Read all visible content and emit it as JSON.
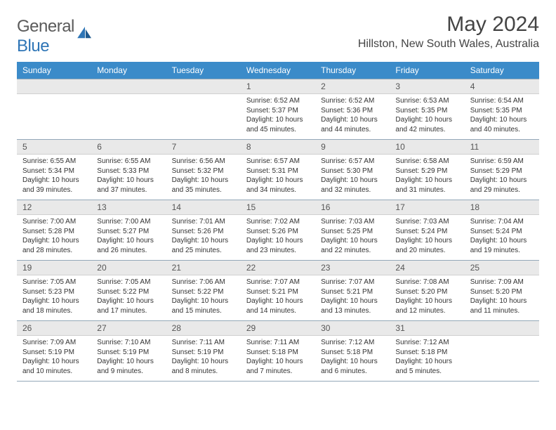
{
  "logo": {
    "text1": "General",
    "text2": "Blue"
  },
  "title": "May 2024",
  "location": "Hillston, New South Wales, Australia",
  "colors": {
    "header_bg": "#3b8bc9",
    "header_text": "#ffffff",
    "daynum_bg": "#e9e9e9",
    "border": "#94a8b8",
    "logo_gray": "#5a5a5a",
    "logo_blue": "#2e75b6"
  },
  "typography": {
    "title_fontsize": 30,
    "location_fontsize": 16,
    "header_fontsize": 12,
    "daynum_fontsize": 12,
    "body_fontsize": 10
  },
  "day_headers": [
    "Sunday",
    "Monday",
    "Tuesday",
    "Wednesday",
    "Thursday",
    "Friday",
    "Saturday"
  ],
  "weeks": [
    [
      null,
      null,
      null,
      {
        "n": "1",
        "sr": "6:52 AM",
        "ss": "5:37 PM",
        "dl": "10 hours and 45 minutes."
      },
      {
        "n": "2",
        "sr": "6:52 AM",
        "ss": "5:36 PM",
        "dl": "10 hours and 44 minutes."
      },
      {
        "n": "3",
        "sr": "6:53 AM",
        "ss": "5:35 PM",
        "dl": "10 hours and 42 minutes."
      },
      {
        "n": "4",
        "sr": "6:54 AM",
        "ss": "5:35 PM",
        "dl": "10 hours and 40 minutes."
      }
    ],
    [
      {
        "n": "5",
        "sr": "6:55 AM",
        "ss": "5:34 PM",
        "dl": "10 hours and 39 minutes."
      },
      {
        "n": "6",
        "sr": "6:55 AM",
        "ss": "5:33 PM",
        "dl": "10 hours and 37 minutes."
      },
      {
        "n": "7",
        "sr": "6:56 AM",
        "ss": "5:32 PM",
        "dl": "10 hours and 35 minutes."
      },
      {
        "n": "8",
        "sr": "6:57 AM",
        "ss": "5:31 PM",
        "dl": "10 hours and 34 minutes."
      },
      {
        "n": "9",
        "sr": "6:57 AM",
        "ss": "5:30 PM",
        "dl": "10 hours and 32 minutes."
      },
      {
        "n": "10",
        "sr": "6:58 AM",
        "ss": "5:29 PM",
        "dl": "10 hours and 31 minutes."
      },
      {
        "n": "11",
        "sr": "6:59 AM",
        "ss": "5:29 PM",
        "dl": "10 hours and 29 minutes."
      }
    ],
    [
      {
        "n": "12",
        "sr": "7:00 AM",
        "ss": "5:28 PM",
        "dl": "10 hours and 28 minutes."
      },
      {
        "n": "13",
        "sr": "7:00 AM",
        "ss": "5:27 PM",
        "dl": "10 hours and 26 minutes."
      },
      {
        "n": "14",
        "sr": "7:01 AM",
        "ss": "5:26 PM",
        "dl": "10 hours and 25 minutes."
      },
      {
        "n": "15",
        "sr": "7:02 AM",
        "ss": "5:26 PM",
        "dl": "10 hours and 23 minutes."
      },
      {
        "n": "16",
        "sr": "7:03 AM",
        "ss": "5:25 PM",
        "dl": "10 hours and 22 minutes."
      },
      {
        "n": "17",
        "sr": "7:03 AM",
        "ss": "5:24 PM",
        "dl": "10 hours and 20 minutes."
      },
      {
        "n": "18",
        "sr": "7:04 AM",
        "ss": "5:24 PM",
        "dl": "10 hours and 19 minutes."
      }
    ],
    [
      {
        "n": "19",
        "sr": "7:05 AM",
        "ss": "5:23 PM",
        "dl": "10 hours and 18 minutes."
      },
      {
        "n": "20",
        "sr": "7:05 AM",
        "ss": "5:22 PM",
        "dl": "10 hours and 17 minutes."
      },
      {
        "n": "21",
        "sr": "7:06 AM",
        "ss": "5:22 PM",
        "dl": "10 hours and 15 minutes."
      },
      {
        "n": "22",
        "sr": "7:07 AM",
        "ss": "5:21 PM",
        "dl": "10 hours and 14 minutes."
      },
      {
        "n": "23",
        "sr": "7:07 AM",
        "ss": "5:21 PM",
        "dl": "10 hours and 13 minutes."
      },
      {
        "n": "24",
        "sr": "7:08 AM",
        "ss": "5:20 PM",
        "dl": "10 hours and 12 minutes."
      },
      {
        "n": "25",
        "sr": "7:09 AM",
        "ss": "5:20 PM",
        "dl": "10 hours and 11 minutes."
      }
    ],
    [
      {
        "n": "26",
        "sr": "7:09 AM",
        "ss": "5:19 PM",
        "dl": "10 hours and 10 minutes."
      },
      {
        "n": "27",
        "sr": "7:10 AM",
        "ss": "5:19 PM",
        "dl": "10 hours and 9 minutes."
      },
      {
        "n": "28",
        "sr": "7:11 AM",
        "ss": "5:19 PM",
        "dl": "10 hours and 8 minutes."
      },
      {
        "n": "29",
        "sr": "7:11 AM",
        "ss": "5:18 PM",
        "dl": "10 hours and 7 minutes."
      },
      {
        "n": "30",
        "sr": "7:12 AM",
        "ss": "5:18 PM",
        "dl": "10 hours and 6 minutes."
      },
      {
        "n": "31",
        "sr": "7:12 AM",
        "ss": "5:18 PM",
        "dl": "10 hours and 5 minutes."
      },
      null
    ]
  ],
  "labels": {
    "sunrise": "Sunrise:",
    "sunset": "Sunset:",
    "daylight": "Daylight:"
  }
}
